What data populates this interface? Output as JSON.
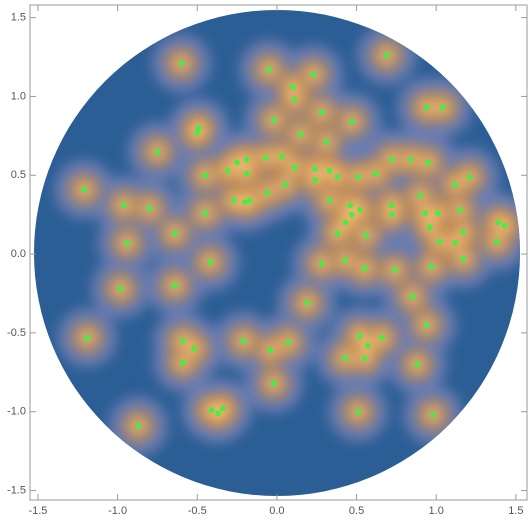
{
  "chart_data": {
    "type": "scatter",
    "x": [
      -0.6,
      -0.05,
      0.23,
      0.69,
      0.1,
      0.11,
      0.28,
      0.47,
      -0.02,
      -0.49,
      -0.5,
      -0.75,
      0.15,
      0.31,
      0.94,
      1.04,
      -0.19,
      -0.25,
      -0.07,
      0.03,
      0.72,
      0.84,
      0.95,
      -0.45,
      -0.31,
      -0.19,
      0.11,
      0.24,
      0.33,
      0.62,
      0.38,
      0.51,
      -1.21,
      0.24,
      -0.27,
      -0.2,
      -0.17,
      -0.06,
      0.05,
      0.33,
      0.46,
      0.72,
      0.9,
      1.12,
      1.21,
      -0.96,
      -0.8,
      -0.45,
      0.47,
      0.52,
      0.43,
      0.72,
      0.93,
      1.01,
      1.15,
      1.39,
      1.43,
      -0.64,
      0.38,
      0.56,
      0.96,
      1.12,
      1.02,
      1.17,
      1.38,
      -0.94,
      -0.42,
      0.28,
      0.43,
      0.74,
      0.55,
      0.97,
      1.17,
      -0.98,
      -0.64,
      0.19,
      0.85,
      0.94,
      -1.19,
      -0.59,
      -0.21,
      0.07,
      -0.04,
      0.52,
      0.57,
      0.66,
      -0.52,
      0.43,
      0.55,
      -0.59,
      0.88,
      -0.02,
      -0.34,
      -0.41,
      -0.37,
      0.51,
      0.98,
      -0.87
    ],
    "values": [
      1.21,
      1.17,
      1.14,
      1.26,
      1.06,
      0.98,
      0.9,
      0.84,
      0.85,
      0.8,
      0.77,
      0.65,
      0.76,
      0.71,
      0.93,
      0.93,
      0.6,
      0.58,
      0.61,
      0.62,
      0.6,
      0.6,
      0.58,
      0.5,
      0.53,
      0.51,
      0.55,
      0.54,
      0.53,
      0.51,
      0.49,
      0.49,
      0.41,
      0.47,
      0.34,
      0.33,
      0.34,
      0.39,
      0.44,
      0.34,
      0.31,
      0.31,
      0.37,
      0.44,
      0.49,
      0.31,
      0.29,
      0.26,
      0.25,
      0.28,
      0.2,
      0.25,
      0.26,
      0.26,
      0.28,
      0.2,
      0.18,
      0.13,
      0.13,
      0.12,
      0.17,
      0.07,
      0.08,
      0.14,
      0.08,
      0.07,
      -0.05,
      -0.06,
      -0.04,
      -0.1,
      -0.09,
      -0.08,
      -0.03,
      -0.22,
      -0.2,
      -0.31,
      -0.27,
      -0.45,
      -0.53,
      -0.55,
      -0.55,
      -0.56,
      -0.61,
      -0.52,
      -0.58,
      -0.53,
      -0.6,
      -0.66,
      -0.66,
      -0.69,
      -0.7,
      -0.82,
      -0.98,
      -0.99,
      -1.01,
      -1.0,
      -1.02,
      -1.09
    ],
    "color": "#3ef23e",
    "xlim": [
      -1.55,
      1.57
    ],
    "ylim": [
      -1.56,
      1.58
    ],
    "xticks": [
      -1.5,
      {
        "value": -1.0,
        "label": "-1.0"
      },
      -0.5,
      {
        "value": 0.0,
        "label": "0.0"
      },
      0.5,
      {
        "value": 1.0,
        "label": "1.0"
      },
      1.5
    ],
    "yticks": [
      -1.5,
      {
        "value": -1.0,
        "label": "-1.0"
      },
      -0.5,
      {
        "value": 0.0,
        "label": "0.0"
      },
      0.5,
      {
        "value": 1.0,
        "label": "1.0"
      },
      1.5
    ]
  }
}
